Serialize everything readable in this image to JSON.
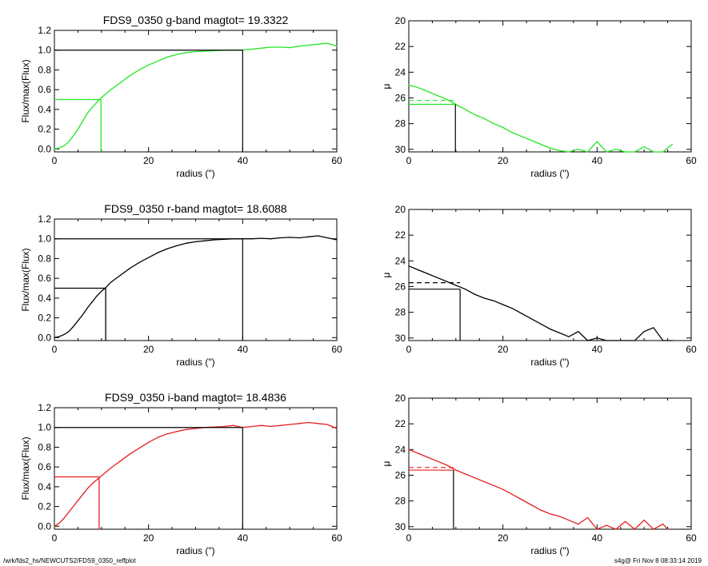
{
  "footer": {
    "left": "/wrk/fds2_hs/NEWCUTS2/FDS9_0350_reffplot",
    "right": "s4g@  Fri Nov  8 08:33:14 2019"
  },
  "chart_data": [
    {
      "type": "line",
      "panel": "growth-curve-g",
      "title": "FDS9_0350 g-band  magtot=     19.3322",
      "xlabel": "radius (\")",
      "ylabel": "Flux/max(Flux)",
      "xlim": [
        0,
        60
      ],
      "ylim": [
        -0.03,
        1.2
      ],
      "xticks": [
        0,
        20,
        40,
        60
      ],
      "yticks": [
        0.0,
        0.2,
        0.4,
        0.6,
        0.8,
        1.0,
        1.2
      ],
      "ytick_labels": [
        "0.0",
        "0.2",
        "0.4",
        "0.6",
        "0.8",
        "1.0",
        "1.2"
      ],
      "color": "#22e622",
      "series": [
        {
          "x": [
            0,
            1,
            2,
            3,
            4,
            5,
            6,
            7,
            8,
            9,
            10,
            12,
            14,
            16,
            18,
            20,
            22,
            24,
            26,
            28,
            30,
            32,
            34,
            36,
            38,
            40,
            42,
            44,
            46,
            48,
            50,
            52,
            54,
            56,
            58,
            60
          ],
          "values": [
            0.0,
            0.01,
            0.03,
            0.07,
            0.13,
            0.2,
            0.28,
            0.36,
            0.42,
            0.47,
            0.52,
            0.6,
            0.67,
            0.74,
            0.8,
            0.85,
            0.89,
            0.93,
            0.955,
            0.975,
            0.985,
            0.99,
            0.995,
            0.998,
            1.0,
            1.0,
            1.01,
            1.02,
            1.03,
            1.03,
            1.025,
            1.04,
            1.05,
            1.06,
            1.07,
            1.04
          ]
        }
      ],
      "half_radius": 9.9,
      "ref_radius": 40
    },
    {
      "type": "line",
      "panel": "profile-g",
      "xlabel": "radius (\")",
      "ylabel": "μ",
      "xlim": [
        0,
        60
      ],
      "ylim": [
        30.2,
        20
      ],
      "xticks": [
        0,
        20,
        40,
        60
      ],
      "yticks": [
        20,
        22,
        24,
        26,
        28,
        30
      ],
      "color": "#22e622",
      "mu_mean": 26.2,
      "mu_eff": 26.5,
      "half_radius": 9.9,
      "series": [
        {
          "x": [
            0,
            2,
            4,
            6,
            8,
            10,
            12,
            14,
            16,
            18,
            20,
            22,
            24,
            26,
            28,
            30,
            32,
            34,
            36,
            38,
            40,
            42,
            44,
            46,
            48,
            50,
            52,
            54,
            56
          ],
          "values": [
            25.0,
            25.2,
            25.5,
            25.8,
            26.1,
            26.5,
            26.9,
            27.3,
            27.6,
            28.0,
            28.3,
            28.7,
            29.0,
            29.3,
            29.6,
            29.9,
            30.1,
            30.2,
            30.0,
            30.2,
            29.4,
            30.2,
            30.0,
            30.2,
            30.2,
            29.8,
            30.2,
            30.2,
            29.6
          ]
        }
      ]
    },
    {
      "type": "line",
      "panel": "growth-curve-r",
      "title": "FDS9_0350 r-band  magtot=     18.6088",
      "xlabel": "radius (\")",
      "ylabel": "Flux/max(Flux)",
      "xlim": [
        0,
        60
      ],
      "ylim": [
        -0.03,
        1.2
      ],
      "xticks": [
        0,
        20,
        40,
        60
      ],
      "yticks": [
        0.0,
        0.2,
        0.4,
        0.6,
        0.8,
        1.0,
        1.2
      ],
      "ytick_labels": [
        "0.0",
        "0.2",
        "0.4",
        "0.6",
        "0.8",
        "1.0",
        "1.2"
      ],
      "color": "#000000",
      "series": [
        {
          "x": [
            0,
            1,
            2,
            3,
            4,
            5,
            6,
            7,
            8,
            9,
            10,
            11,
            12,
            14,
            16,
            18,
            20,
            22,
            24,
            26,
            28,
            30,
            32,
            34,
            36,
            38,
            40,
            42,
            44,
            46,
            48,
            50,
            52,
            54,
            56,
            58,
            60
          ],
          "values": [
            0.0,
            0.01,
            0.03,
            0.06,
            0.11,
            0.17,
            0.23,
            0.3,
            0.36,
            0.42,
            0.47,
            0.51,
            0.56,
            0.63,
            0.7,
            0.76,
            0.81,
            0.86,
            0.9,
            0.93,
            0.955,
            0.97,
            0.98,
            0.99,
            0.995,
            1.0,
            1.0,
            1.0,
            1.005,
            1.0,
            1.01,
            1.015,
            1.01,
            1.02,
            1.03,
            1.01,
            0.99
          ]
        }
      ],
      "half_radius": 10.9,
      "ref_radius": 40
    },
    {
      "type": "line",
      "panel": "profile-r",
      "xlabel": "radius (\")",
      "ylabel": "μ",
      "xlim": [
        0,
        60
      ],
      "ylim": [
        30.2,
        20
      ],
      "xticks": [
        0,
        20,
        40,
        60
      ],
      "yticks": [
        20,
        22,
        24,
        26,
        28,
        30
      ],
      "color": "#000000",
      "mu_mean": 25.7,
      "mu_eff": 26.2,
      "half_radius": 10.9,
      "series": [
        {
          "x": [
            0,
            2,
            4,
            6,
            8,
            10,
            12,
            14,
            16,
            18,
            20,
            22,
            24,
            26,
            28,
            30,
            32,
            34,
            36,
            38,
            40,
            42,
            44,
            46,
            48,
            50,
            52,
            54,
            56
          ],
          "values": [
            24.4,
            24.7,
            25.0,
            25.3,
            25.6,
            25.9,
            26.2,
            26.6,
            26.9,
            27.1,
            27.4,
            27.7,
            28.1,
            28.5,
            28.9,
            29.3,
            29.6,
            29.9,
            29.5,
            30.2,
            30.0,
            30.2,
            30.2,
            30.2,
            30.2,
            29.5,
            29.2,
            30.2,
            30.2
          ]
        }
      ]
    },
    {
      "type": "line",
      "panel": "growth-curve-i",
      "title": "FDS9_0350 i-band  magtot=     18.4836",
      "xlabel": "radius (\")",
      "ylabel": "Flux/max(Flux)",
      "xlim": [
        0,
        60
      ],
      "ylim": [
        -0.03,
        1.2
      ],
      "xticks": [
        0,
        20,
        40,
        60
      ],
      "yticks": [
        0.0,
        0.2,
        0.4,
        0.6,
        0.8,
        1.0,
        1.2
      ],
      "ytick_labels": [
        "0.0",
        "0.2",
        "0.4",
        "0.6",
        "0.8",
        "1.0",
        "1.2"
      ],
      "color": "#e62020",
      "series": [
        {
          "x": [
            0,
            1,
            2,
            3,
            4,
            5,
            6,
            7,
            8,
            9,
            10,
            12,
            14,
            16,
            18,
            20,
            22,
            24,
            26,
            28,
            30,
            32,
            34,
            36,
            38,
            40,
            42,
            44,
            46,
            48,
            50,
            52,
            54,
            56,
            58,
            60
          ],
          "values": [
            0.0,
            0.03,
            0.08,
            0.14,
            0.2,
            0.26,
            0.32,
            0.38,
            0.43,
            0.47,
            0.51,
            0.59,
            0.66,
            0.73,
            0.79,
            0.85,
            0.9,
            0.935,
            0.96,
            0.98,
            0.99,
            1.0,
            1.005,
            1.01,
            1.02,
            1.0,
            1.01,
            1.02,
            1.01,
            1.02,
            1.03,
            1.04,
            1.05,
            1.04,
            1.03,
            0.99
          ]
        }
      ],
      "half_radius": 9.5,
      "ref_radius": 40
    },
    {
      "type": "line",
      "panel": "profile-i",
      "xlabel": "radius (\")",
      "ylabel": "μ",
      "xlim": [
        0,
        60
      ],
      "ylim": [
        30.2,
        20
      ],
      "xticks": [
        0,
        20,
        40,
        60
      ],
      "yticks": [
        20,
        22,
        24,
        26,
        28,
        30
      ],
      "color": "#e62020",
      "mu_mean": 25.4,
      "mu_eff": 25.6,
      "half_radius": 9.5,
      "series": [
        {
          "x": [
            0,
            2,
            4,
            6,
            8,
            10,
            12,
            14,
            16,
            18,
            20,
            22,
            24,
            26,
            28,
            30,
            32,
            34,
            36,
            38,
            40,
            42,
            44,
            46,
            48,
            50,
            52,
            54,
            55
          ],
          "values": [
            24.0,
            24.3,
            24.6,
            24.9,
            25.2,
            25.6,
            25.9,
            26.2,
            26.5,
            26.8,
            27.1,
            27.5,
            27.9,
            28.3,
            28.7,
            29.0,
            29.2,
            29.5,
            29.8,
            29.3,
            30.2,
            29.9,
            30.2,
            29.6,
            30.2,
            29.5,
            30.2,
            29.8,
            30.2
          ]
        }
      ]
    }
  ]
}
